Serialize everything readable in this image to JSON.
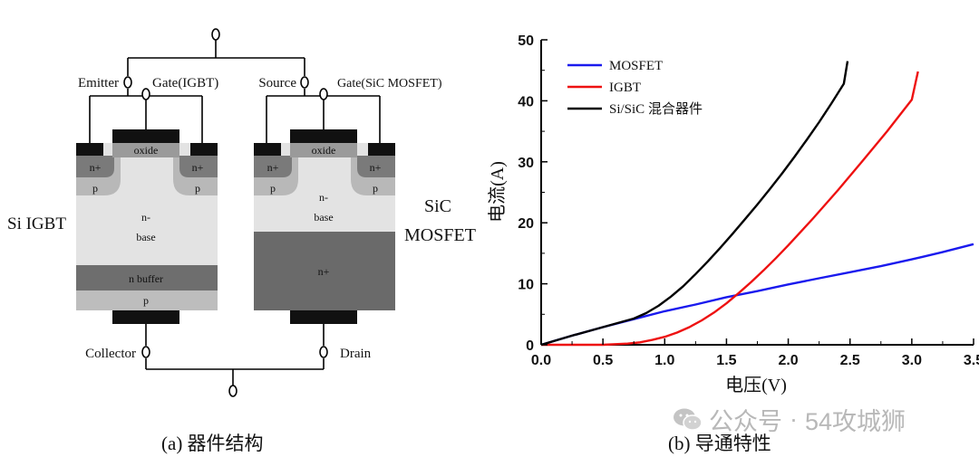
{
  "colors": {
    "metal": "#111111",
    "oxide": "#9a9a9a",
    "nplus": "#7a7a7a",
    "p_region": "#b8b8b8",
    "n_minus": "#e3e3e3",
    "n_buffer": "#6e6e6e",
    "p_collector": "#bdbdbd",
    "sic_substrate": "#6a6a6a",
    "mosfet_line": "#1a1aee",
    "igbt_line": "#ee1111",
    "hybrid_line": "#000000",
    "watermark": "#b8b8b8"
  },
  "diagram": {
    "igbt": {
      "label": "Si IGBT",
      "terminal_emitter": "Emitter",
      "terminal_gate": "Gate(IGBT)",
      "terminal_collector": "Collector",
      "oxide": "oxide",
      "nplus_left": "n+",
      "nplus_right": "n+",
      "p_left": "p",
      "p_right": "p",
      "drift_line1": "n-",
      "drift_line2": "base",
      "buffer": "n buffer",
      "collector_p": "p"
    },
    "mosfet": {
      "label_line1": "SiC",
      "label_line2": "MOSFET",
      "terminal_source": "Source",
      "terminal_gate": "Gate(SiC MOSFET)",
      "terminal_drain": "Drain",
      "oxide": "oxide",
      "nplus_left": "n+",
      "nplus_right": "n+",
      "p_left": "p",
      "p_right": "p",
      "drift_line1": "n-",
      "drift_line2": "base",
      "substrate": "n+"
    },
    "caption": "(a)  器件结构"
  },
  "chart_data": {
    "type": "line",
    "title": "",
    "xlabel": "电压(V)",
    "ylabel": "电流(A)",
    "xlim": [
      0,
      3.5
    ],
    "ylim": [
      0,
      50
    ],
    "xticks": [
      "0.0",
      "0.5",
      "1.0",
      "1.5",
      "2.0",
      "2.5",
      "3.0",
      "3.5"
    ],
    "yticks": [
      "0",
      "10",
      "20",
      "30",
      "40",
      "50"
    ],
    "legend_position": "top-left",
    "series": [
      {
        "name": "MOSFET",
        "color": "#1a1aee",
        "x": [
          0,
          0.25,
          0.5,
          0.75,
          1.0,
          1.25,
          1.5,
          1.75,
          2.0,
          2.25,
          2.5,
          2.75,
          3.0,
          3.25,
          3.5
        ],
        "y": [
          0,
          1.5,
          2.9,
          4.2,
          5.5,
          6.6,
          7.8,
          8.8,
          9.9,
          10.9,
          11.9,
          12.9,
          14.0,
          15.2,
          16.5
        ]
      },
      {
        "name": "IGBT",
        "color": "#ee1111",
        "x": [
          0,
          0.5,
          0.7,
          0.8,
          0.9,
          1.0,
          1.1,
          1.2,
          1.3,
          1.4,
          1.5,
          1.6,
          1.7,
          1.8,
          1.9,
          2.0,
          2.2,
          2.4,
          2.6,
          2.8,
          3.0,
          3.05
        ],
        "y": [
          0,
          0,
          0.2,
          0.4,
          0.8,
          1.3,
          2.0,
          2.9,
          4.0,
          5.3,
          6.8,
          8.5,
          10.3,
          12.2,
          14.2,
          16.3,
          20.7,
          25.3,
          30.1,
          35.0,
          40.2,
          44.8
        ]
      },
      {
        "name": "Si/SiC 混合器件",
        "color": "#000000",
        "x": [
          0,
          0.25,
          0.5,
          0.75,
          0.85,
          0.95,
          1.05,
          1.15,
          1.25,
          1.35,
          1.45,
          1.55,
          1.65,
          1.75,
          1.85,
          1.95,
          2.05,
          2.15,
          2.25,
          2.35,
          2.45,
          2.48
        ],
        "y": [
          0,
          1.5,
          2.9,
          4.3,
          5.2,
          6.4,
          7.9,
          9.6,
          11.6,
          13.7,
          15.9,
          18.2,
          20.6,
          23.0,
          25.5,
          28.1,
          30.8,
          33.6,
          36.5,
          39.6,
          42.8,
          46.5
        ]
      }
    ]
  },
  "chart_caption": "(b)  导通特性",
  "watermark": {
    "brand": "公众号",
    "separator": "·",
    "name": "54攻城狮",
    "icon": "wechat-icon"
  }
}
